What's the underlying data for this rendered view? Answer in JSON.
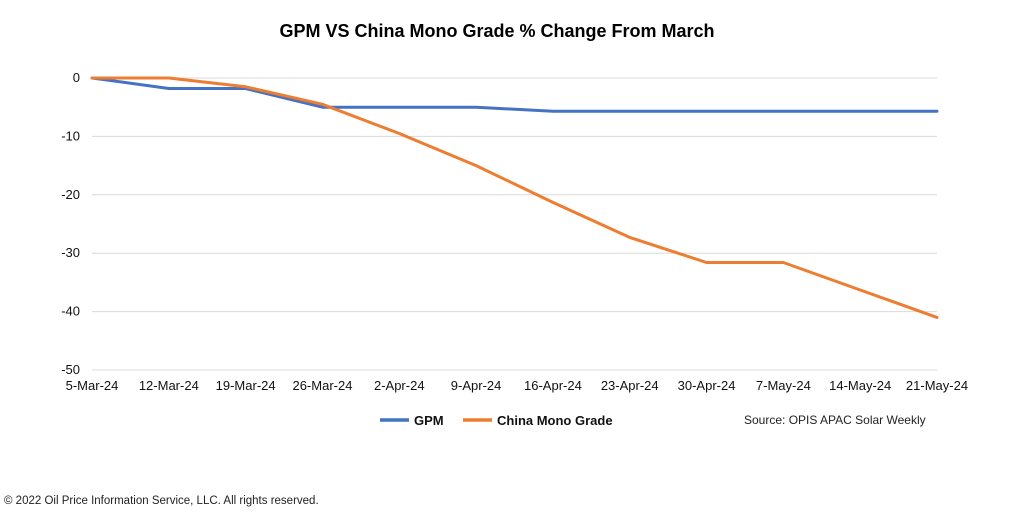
{
  "chart_data": {
    "type": "line",
    "title": "GPM VS China Mono Grade % Change From March",
    "x": [
      "5-Mar-24",
      "12-Mar-24",
      "19-Mar-24",
      "26-Mar-24",
      "2-Apr-24",
      "9-Apr-24",
      "16-Apr-24",
      "23-Apr-24",
      "30-Apr-24",
      "7-May-24",
      "14-May-24",
      "21-May-24"
    ],
    "series": [
      {
        "name": "GPM",
        "color": "#4472C4",
        "values": [
          0,
          -1.8,
          -1.8,
          -5.0,
          -5.0,
          -5.0,
          -5.7,
          -5.7,
          -5.7,
          -5.7,
          -5.7,
          -5.7
        ]
      },
      {
        "name": "China Mono Grade",
        "color": "#ED7D31",
        "values": [
          0,
          0,
          -1.5,
          -4.5,
          -9.5,
          -15.0,
          -21.3,
          -27.3,
          -31.6,
          -31.6,
          -36.3,
          -41.0
        ]
      }
    ],
    "yticks": [
      "0",
      "-10",
      "-20",
      "-30",
      "-40",
      "-50"
    ],
    "ylim": [
      -50,
      0
    ],
    "grid": true,
    "legend_position": "bottom",
    "source": "Source: OPIS APAC Solar Weekly"
  },
  "footer": {
    "copyright": "© 2022 Oil Price Information Service, LLC. All rights reserved."
  }
}
